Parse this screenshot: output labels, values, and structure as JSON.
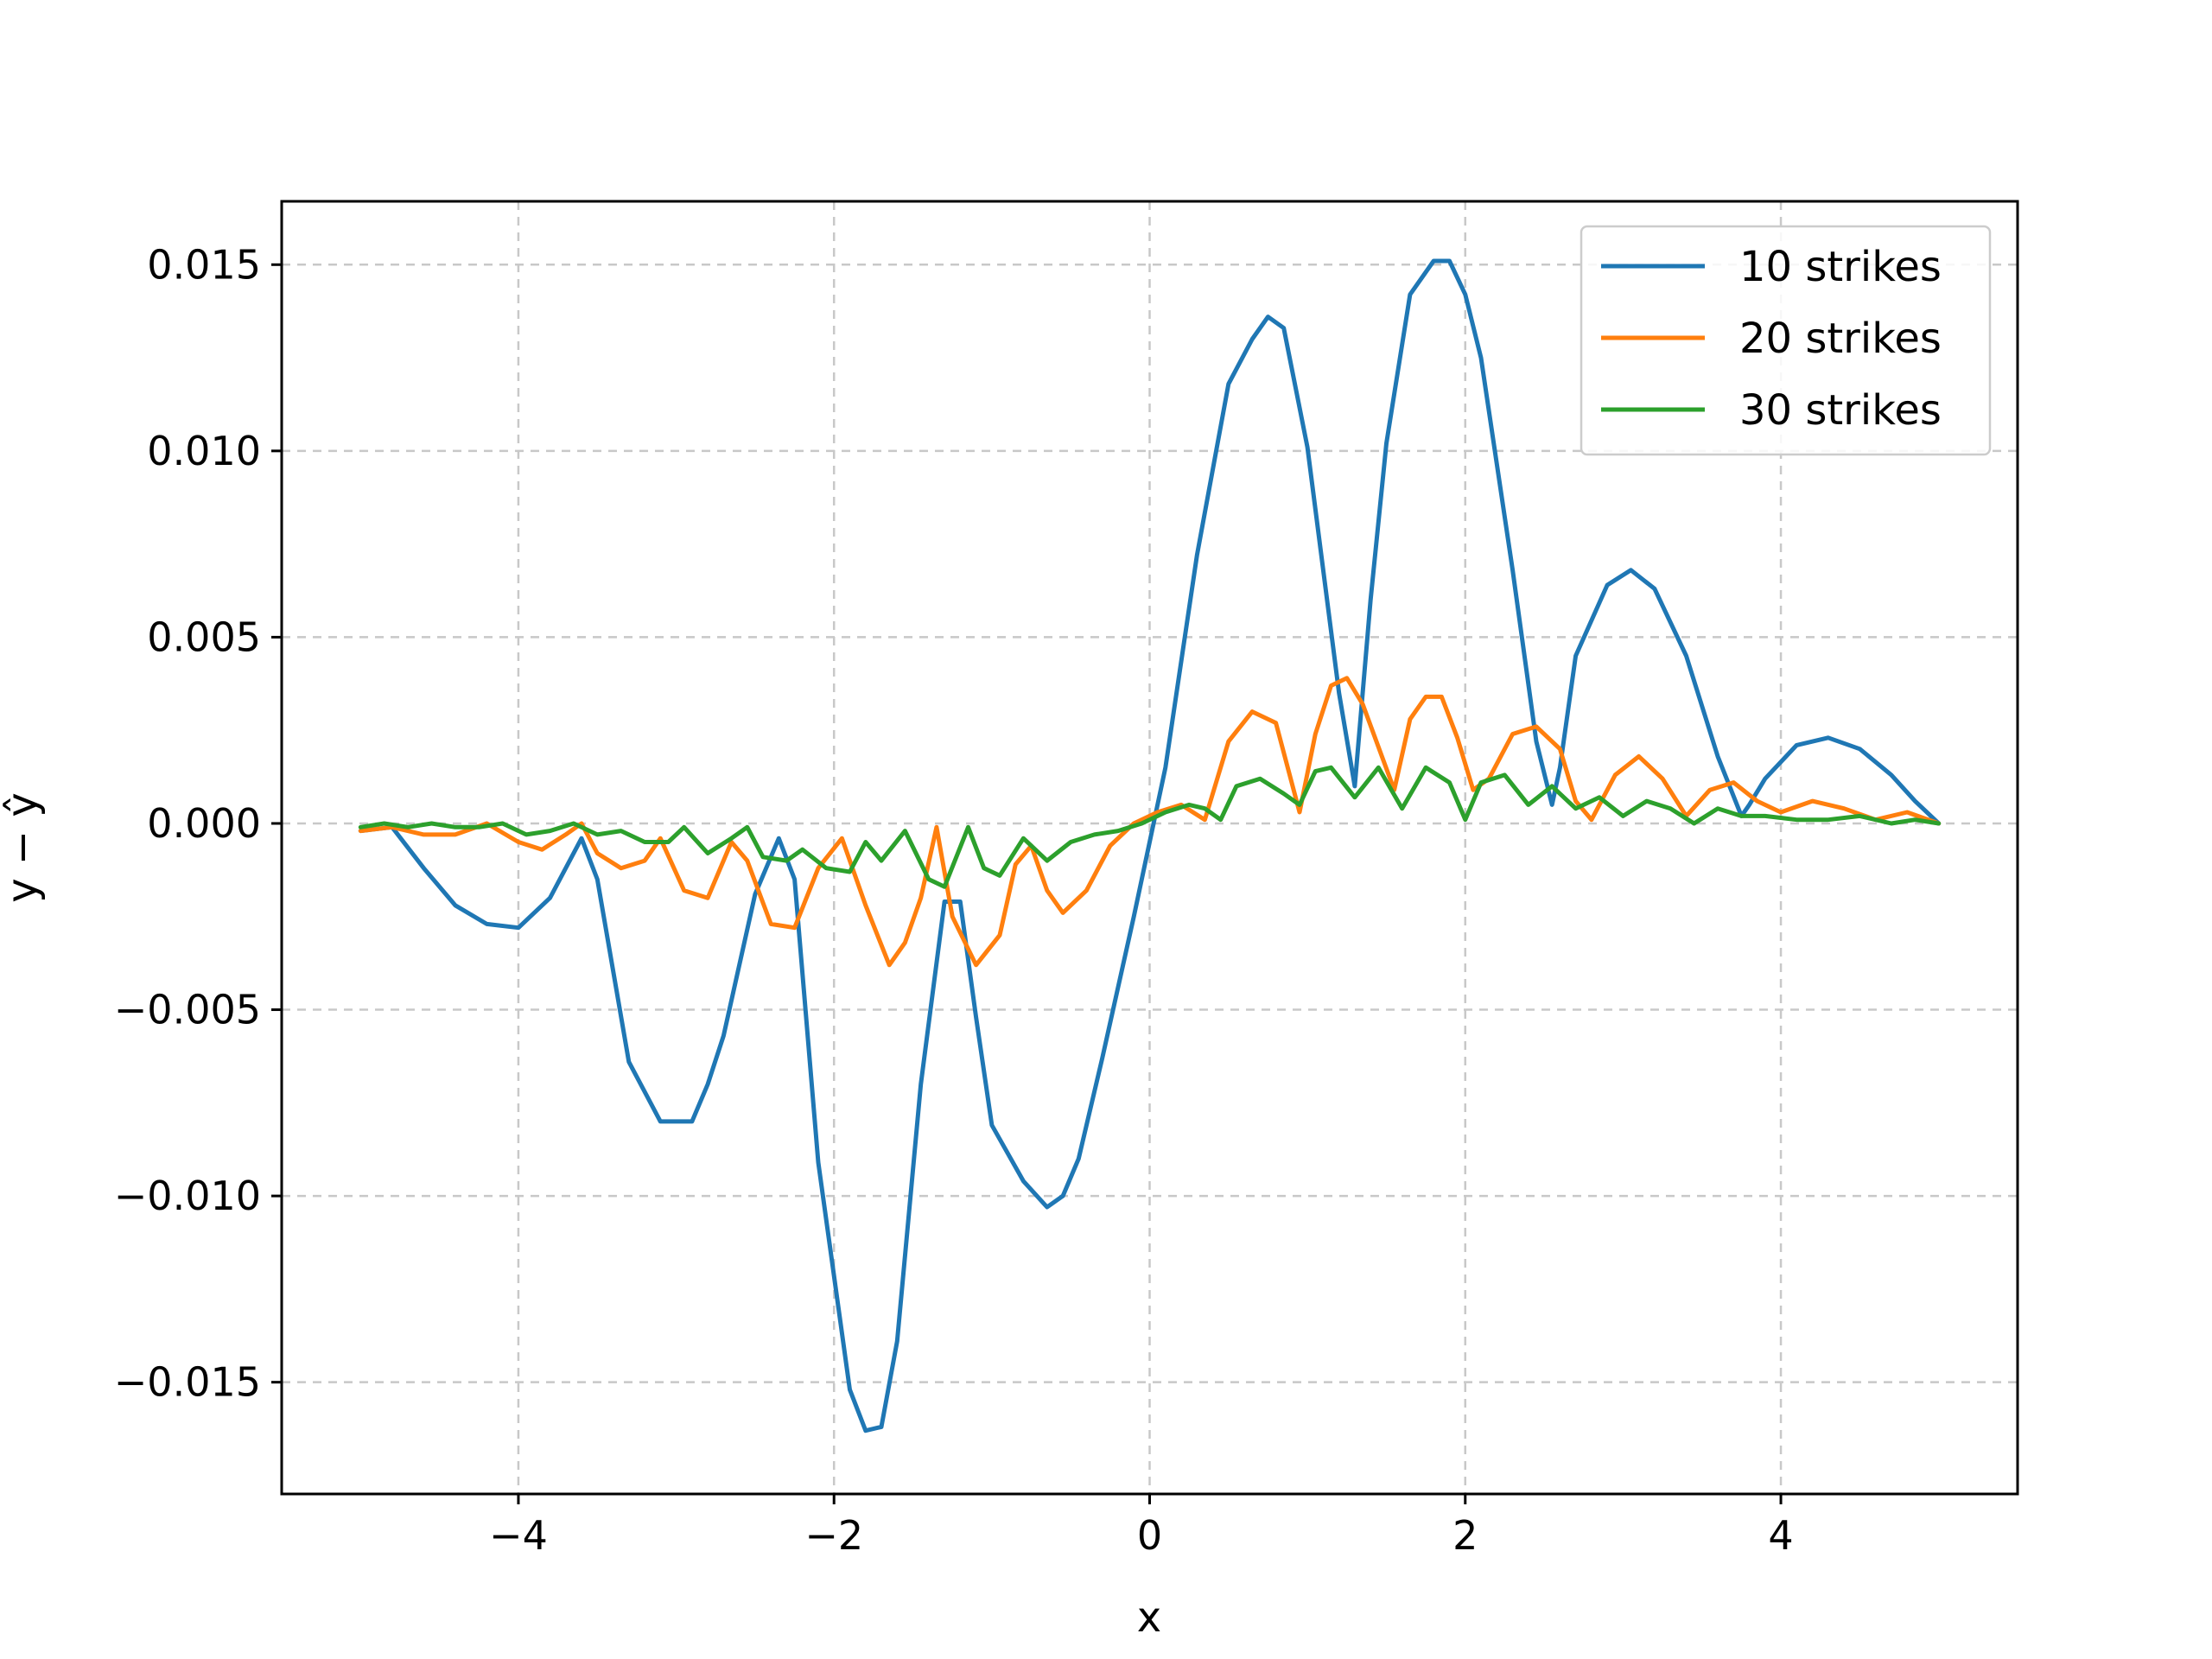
{
  "chart_data": {
    "type": "line",
    "title": "",
    "xlabel": "x",
    "ylabel": "y − ŷ",
    "xlim": [
      -5.5,
      5.5
    ],
    "ylim": [
      -0.018,
      0.0167
    ],
    "xticks": [
      -4,
      -2,
      0,
      2,
      4
    ],
    "xtick_labels": [
      "−4",
      "−2",
      "0",
      "2",
      "4"
    ],
    "yticks": [
      -0.015,
      -0.01,
      -0.005,
      0.0,
      0.005,
      0.01,
      0.015
    ],
    "ytick_labels": [
      "−0.015",
      "−0.010",
      "−0.005",
      "0.000",
      "0.005",
      "0.010",
      "0.015"
    ],
    "grid": true,
    "legend_position": "top-right",
    "series": [
      {
        "name": "10 strikes",
        "color": "#1f77b4",
        "x": [
          -5.0,
          -4.8,
          -4.6,
          -4.4,
          -4.2,
          -4.0,
          -3.8,
          -3.6,
          -3.5,
          -3.3,
          -3.1,
          -2.9,
          -2.8,
          -2.7,
          -2.5,
          -2.35,
          -2.25,
          -2.1,
          -1.9,
          -1.8,
          -1.7,
          -1.6,
          -1.45,
          -1.3,
          -1.2,
          -1.1,
          -1.0,
          -0.8,
          -0.65,
          -0.55,
          -0.45,
          -0.3,
          -0.1,
          0.1,
          0.3,
          0.5,
          0.65,
          0.75,
          0.85,
          1.0,
          1.2,
          1.3,
          1.4,
          1.5,
          1.65,
          1.8,
          1.9,
          2.0,
          2.1,
          2.3,
          2.45,
          2.55,
          2.6,
          2.7,
          2.9,
          3.05,
          3.2,
          3.4,
          3.6,
          3.75,
          3.8,
          3.9,
          4.1,
          4.3,
          4.5,
          4.7,
          4.85,
          5.0
        ],
        "y": [
          -0.0002,
          -0.0001,
          -0.0012,
          -0.0022,
          -0.0027,
          -0.0028,
          -0.002,
          -0.0004,
          -0.0015,
          -0.0064,
          -0.008,
          -0.008,
          -0.007,
          -0.0057,
          -0.0019,
          -0.0004,
          -0.0015,
          -0.0091,
          -0.0152,
          -0.0163,
          -0.0162,
          -0.0139,
          -0.007,
          -0.0021,
          -0.0021,
          -0.0052,
          -0.0081,
          -0.0096,
          -0.0103,
          -0.01,
          -0.009,
          -0.0063,
          -0.0025,
          0.0015,
          0.0072,
          0.0118,
          0.013,
          0.0136,
          0.0133,
          0.0101,
          0.0035,
          0.001,
          0.006,
          0.0102,
          0.0142,
          0.0151,
          0.0151,
          0.0142,
          0.0125,
          0.0068,
          0.0022,
          0.0005,
          0.0015,
          0.0045,
          0.0064,
          0.0068,
          0.0063,
          0.0045,
          0.0018,
          0.0002,
          0.0005,
          0.0012,
          0.0021,
          0.0023,
          0.002,
          0.0013,
          0.0006,
          0.0
        ]
      },
      {
        "name": "20 strikes",
        "color": "#ff7f0e",
        "x": [
          -5.0,
          -4.8,
          -4.6,
          -4.4,
          -4.2,
          -4.0,
          -3.85,
          -3.7,
          -3.6,
          -3.5,
          -3.35,
          -3.2,
          -3.1,
          -2.95,
          -2.8,
          -2.65,
          -2.55,
          -2.4,
          -2.25,
          -2.1,
          -1.95,
          -1.8,
          -1.65,
          -1.55,
          -1.45,
          -1.35,
          -1.25,
          -1.1,
          -0.95,
          -0.85,
          -0.75,
          -0.65,
          -0.55,
          -0.4,
          -0.25,
          -0.1,
          0.05,
          0.2,
          0.35,
          0.5,
          0.65,
          0.8,
          0.95,
          1.05,
          1.15,
          1.25,
          1.35,
          1.55,
          1.65,
          1.75,
          1.85,
          1.95,
          2.05,
          2.15,
          2.3,
          2.45,
          2.6,
          2.7,
          2.8,
          2.95,
          3.1,
          3.25,
          3.4,
          3.55,
          3.7,
          3.85,
          4.0,
          4.2,
          4.4,
          4.6,
          4.8,
          5.0
        ],
        "y": [
          -0.0002,
          -0.0001,
          -0.0003,
          -0.0003,
          0.0,
          -0.0005,
          -0.0007,
          -0.0003,
          0.0,
          -0.0008,
          -0.0012,
          -0.001,
          -0.0004,
          -0.0018,
          -0.002,
          -0.0005,
          -0.001,
          -0.0027,
          -0.0028,
          -0.0012,
          -0.0004,
          -0.0022,
          -0.0038,
          -0.0032,
          -0.002,
          -0.0001,
          -0.0025,
          -0.0038,
          -0.003,
          -0.0011,
          -0.0006,
          -0.0018,
          -0.0024,
          -0.0018,
          -0.0006,
          0.0,
          0.0003,
          0.0005,
          0.0001,
          0.0022,
          0.003,
          0.0027,
          0.0003,
          0.0024,
          0.0037,
          0.0039,
          0.0032,
          0.0009,
          0.0028,
          0.0034,
          0.0034,
          0.0023,
          0.0009,
          0.0012,
          0.0024,
          0.0026,
          0.002,
          0.0006,
          0.0001,
          0.0013,
          0.0018,
          0.0012,
          0.0002,
          0.0009,
          0.0011,
          0.0006,
          0.0003,
          0.0006,
          0.0004,
          0.0001,
          0.0003,
          0.0
        ]
      },
      {
        "name": "30 strikes",
        "color": "#2ca02c",
        "x": [
          -5.0,
          -4.85,
          -4.7,
          -4.55,
          -4.4,
          -4.25,
          -4.1,
          -3.95,
          -3.8,
          -3.65,
          -3.5,
          -3.35,
          -3.2,
          -3.05,
          -2.95,
          -2.8,
          -2.65,
          -2.55,
          -2.45,
          -2.3,
          -2.2,
          -2.05,
          -1.9,
          -1.8,
          -1.7,
          -1.55,
          -1.4,
          -1.3,
          -1.15,
          -1.05,
          -0.95,
          -0.8,
          -0.65,
          -0.5,
          -0.35,
          -0.2,
          -0.05,
          0.1,
          0.25,
          0.35,
          0.45,
          0.55,
          0.7,
          0.85,
          0.95,
          1.05,
          1.15,
          1.3,
          1.45,
          1.6,
          1.75,
          1.9,
          2.0,
          2.1,
          2.25,
          2.4,
          2.55,
          2.7,
          2.85,
          3.0,
          3.15,
          3.3,
          3.45,
          3.6,
          3.75,
          3.9,
          4.1,
          4.3,
          4.5,
          4.7,
          4.85,
          5.0
        ],
        "y": [
          -0.0001,
          0.0,
          -0.0001,
          0.0,
          -0.0001,
          -0.0001,
          0.0,
          -0.0003,
          -0.0002,
          0.0,
          -0.0003,
          -0.0002,
          -0.0005,
          -0.0005,
          -0.0001,
          -0.0008,
          -0.0004,
          -0.0001,
          -0.0009,
          -0.001,
          -0.0007,
          -0.0012,
          -0.0013,
          -0.0005,
          -0.001,
          -0.0002,
          -0.0015,
          -0.0017,
          -0.0001,
          -0.0012,
          -0.0014,
          -0.0004,
          -0.001,
          -0.0005,
          -0.0003,
          -0.0002,
          0.0,
          0.0003,
          0.0005,
          0.0004,
          0.0001,
          0.001,
          0.0012,
          0.0008,
          0.0005,
          0.0014,
          0.0015,
          0.0007,
          0.0015,
          0.0004,
          0.0015,
          0.0011,
          0.0001,
          0.0011,
          0.0013,
          0.0005,
          0.001,
          0.0004,
          0.0007,
          0.0002,
          0.0006,
          0.0004,
          0.0,
          0.0004,
          0.0002,
          0.0002,
          0.0001,
          0.0001,
          0.0002,
          0.0,
          0.0001,
          0.0
        ]
      }
    ]
  }
}
